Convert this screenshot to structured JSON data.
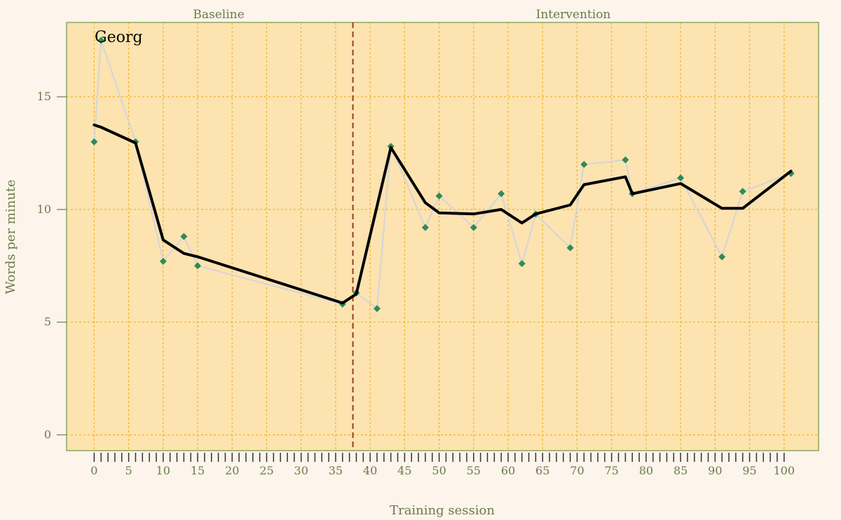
{
  "chart_data": {
    "type": "line",
    "phases": [
      {
        "name": "Baseline",
        "x_range": [
          0,
          37
        ]
      },
      {
        "name": "Intervention",
        "x_range": [
          38,
          101
        ]
      }
    ],
    "phase_change_x": 37.5,
    "case_label": "Georg",
    "xlabel": "Training session",
    "ylabel": "Words per minute",
    "xlim": [
      -4,
      105
    ],
    "ylim": [
      -0.7,
      18.3
    ],
    "x_ticks": [
      0,
      5,
      10,
      15,
      20,
      25,
      30,
      35,
      40,
      45,
      50,
      55,
      60,
      65,
      70,
      75,
      80,
      85,
      90,
      95,
      100
    ],
    "y_ticks": [
      0,
      5,
      10,
      15
    ],
    "grid": true,
    "series": [
      {
        "role": "observed",
        "x": [
          0,
          1,
          6,
          10,
          13,
          15,
          36,
          38,
          41,
          43,
          48,
          50,
          55,
          59,
          62,
          64,
          69,
          71,
          77,
          78,
          85,
          91,
          94,
          101
        ],
        "y": [
          13.0,
          17.5,
          13.0,
          7.7,
          8.8,
          7.5,
          5.8,
          6.3,
          5.6,
          12.8,
          9.2,
          10.6,
          9.2,
          10.7,
          7.6,
          9.8,
          8.3,
          12.0,
          12.2,
          10.7,
          11.4,
          7.9,
          10.8,
          11.6
        ]
      },
      {
        "role": "smoothed",
        "x": [
          0,
          1,
          6,
          10,
          13,
          15,
          36,
          38,
          43,
          48,
          50,
          55,
          59,
          62,
          64,
          69,
          71,
          77,
          78,
          85,
          91,
          94,
          101
        ],
        "y": [
          13.75,
          13.65,
          12.95,
          8.65,
          8.05,
          7.9,
          5.85,
          6.25,
          12.75,
          10.3,
          9.85,
          9.8,
          10.0,
          9.4,
          9.8,
          10.2,
          11.1,
          11.45,
          10.7,
          11.15,
          10.05,
          10.05,
          11.7
        ]
      }
    ]
  },
  "colors": {
    "background": "#fdf4ec",
    "panel_fill": "#fce3b0",
    "panel_border": "#8fa860",
    "grid": "#f2b41f",
    "phase_gap": "#fcf1e6",
    "phase_line": "#9c4a2a",
    "observed_line": "#d6d6d6",
    "marker": "#2e8b57",
    "smoothed_line": "#000000",
    "text": "#6b7b45"
  }
}
